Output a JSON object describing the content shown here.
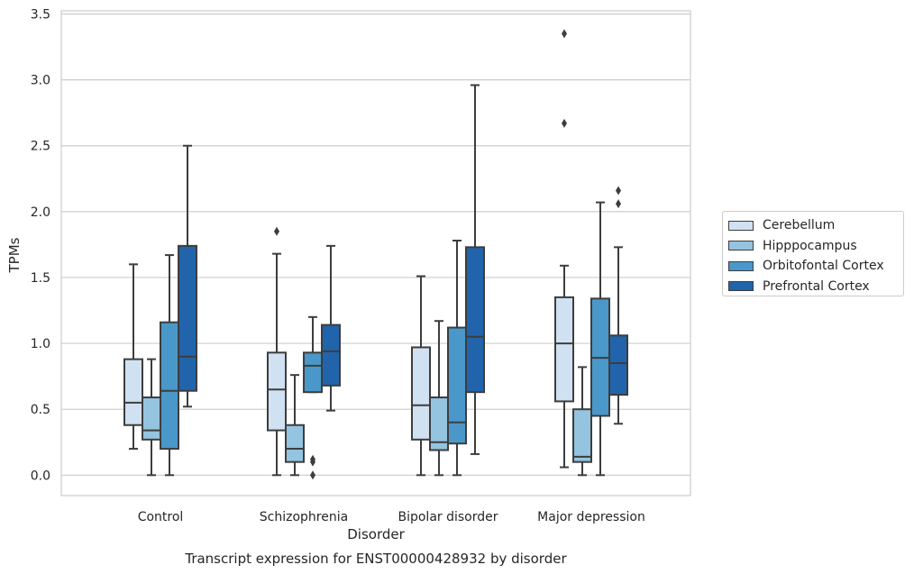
{
  "chart_data": {
    "type": "box",
    "title": "Transcript expression for ENST00000428932 by disorder",
    "xlabel": "Disorder",
    "ylabel": "TPMs",
    "ylim": [
      -0.15,
      3.55
    ],
    "yticks": [
      0.0,
      0.5,
      1.0,
      1.5,
      2.0,
      2.5,
      3.0,
      3.5
    ],
    "ytick_labels": [
      "0.0",
      "0.5",
      "1.0",
      "1.5",
      "2.0",
      "2.5",
      "3.0",
      "3.5"
    ],
    "grid": "horizontal",
    "legend_position": "right",
    "categories": [
      "Control",
      "Schizophrenia",
      "Bipolar disorder",
      "Major depression"
    ],
    "series": [
      {
        "name": "Cerebellum",
        "color": "#d0e1f2",
        "boxes": [
          {
            "whislo": 0.2,
            "q1": 0.38,
            "med": 0.55,
            "q3": 0.88,
            "whishi": 1.6,
            "fliers": []
          },
          {
            "whislo": 0.0,
            "q1": 0.34,
            "med": 0.65,
            "q3": 0.93,
            "whishi": 1.68,
            "fliers": [
              1.85
            ]
          },
          {
            "whislo": 0.0,
            "q1": 0.27,
            "med": 0.53,
            "q3": 0.97,
            "whishi": 1.51,
            "fliers": []
          },
          {
            "whislo": 0.06,
            "q1": 0.56,
            "med": 1.0,
            "q3": 1.35,
            "whishi": 1.59,
            "fliers": [
              2.67,
              3.35
            ]
          }
        ]
      },
      {
        "name": "Hipppocampus",
        "color": "#94c4df",
        "boxes": [
          {
            "whislo": 0.0,
            "q1": 0.27,
            "med": 0.34,
            "q3": 0.59,
            "whishi": 0.88,
            "fliers": []
          },
          {
            "whislo": 0.0,
            "q1": 0.1,
            "med": 0.2,
            "q3": 0.38,
            "whishi": 0.76,
            "fliers": []
          },
          {
            "whislo": 0.0,
            "q1": 0.19,
            "med": 0.25,
            "q3": 0.59,
            "whishi": 1.17,
            "fliers": []
          },
          {
            "whislo": 0.0,
            "q1": 0.1,
            "med": 0.14,
            "q3": 0.5,
            "whishi": 0.82,
            "fliers": []
          }
        ]
      },
      {
        "name": "Orbitofontal Cortex",
        "color": "#4a98c9",
        "boxes": [
          {
            "whislo": 0.0,
            "q1": 0.2,
            "med": 0.64,
            "q3": 1.16,
            "whishi": 1.67,
            "fliers": []
          },
          {
            "whislo": 0.63,
            "q1": 0.63,
            "med": 0.83,
            "q3": 0.93,
            "whishi": 1.2,
            "fliers": [
              0.0,
              0.1,
              0.12
            ]
          },
          {
            "whislo": 0.0,
            "q1": 0.24,
            "med": 0.4,
            "q3": 1.12,
            "whishi": 1.78,
            "fliers": []
          },
          {
            "whislo": 0.0,
            "q1": 0.45,
            "med": 0.89,
            "q3": 1.34,
            "whishi": 2.07,
            "fliers": []
          }
        ]
      },
      {
        "name": "Prefrontal Cortex",
        "color": "#2164ab",
        "boxes": [
          {
            "whislo": 0.52,
            "q1": 0.64,
            "med": 0.9,
            "q3": 1.74,
            "whishi": 2.5,
            "fliers": []
          },
          {
            "whislo": 0.49,
            "q1": 0.68,
            "med": 0.94,
            "q3": 1.14,
            "whishi": 1.74,
            "fliers": []
          },
          {
            "whislo": 0.16,
            "q1": 0.63,
            "med": 1.05,
            "q3": 1.73,
            "whishi": 2.96,
            "fliers": []
          },
          {
            "whislo": 0.39,
            "q1": 0.61,
            "med": 0.85,
            "q3": 1.06,
            "whishi": 1.73,
            "fliers": [
              2.06,
              2.16
            ]
          }
        ]
      }
    ]
  }
}
